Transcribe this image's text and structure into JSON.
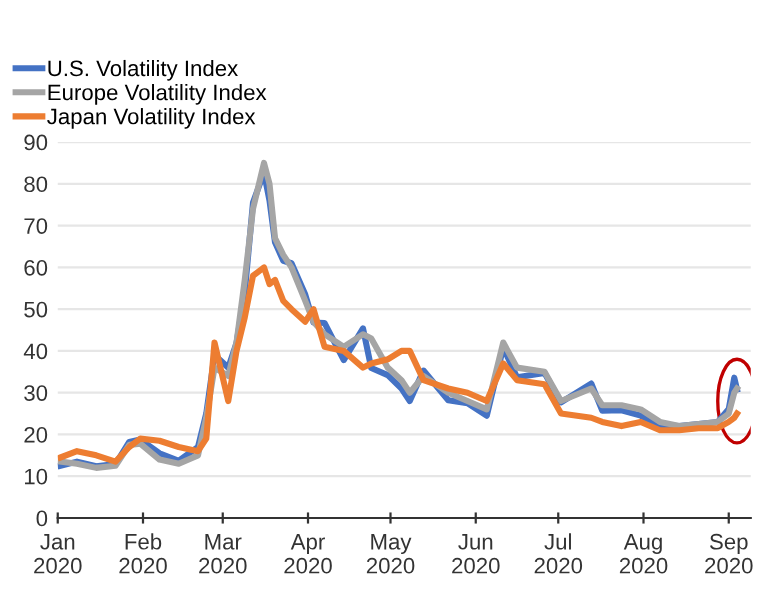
{
  "chart_data": {
    "type": "line",
    "x": [
      "2020-01-02",
      "2020-01-08",
      "2020-01-15",
      "2020-01-22",
      "2020-01-27",
      "2020-01-31",
      "2020-02-07",
      "2020-02-14",
      "2020-02-21",
      "2020-02-24",
      "2020-02-27",
      "2020-03-03",
      "2020-03-06",
      "2020-03-09",
      "2020-03-12",
      "2020-03-16",
      "2020-03-18",
      "2020-03-20",
      "2020-03-23",
      "2020-03-26",
      "2020-03-31",
      "2020-04-03",
      "2020-04-07",
      "2020-04-14",
      "2020-04-21",
      "2020-04-24",
      "2020-04-30",
      "2020-05-05",
      "2020-05-08",
      "2020-05-13",
      "2020-05-22",
      "2020-05-29",
      "2020-06-05",
      "2020-06-11",
      "2020-06-16",
      "2020-06-26",
      "2020-07-02",
      "2020-07-13",
      "2020-07-17",
      "2020-07-24",
      "2020-07-31",
      "2020-08-07",
      "2020-08-14",
      "2020-08-21",
      "2020-08-28",
      "2020-09-01",
      "2020-09-03",
      "2020-09-04"
    ],
    "series": [
      {
        "name": "U.S. Volatility Index",
        "color": "#4472c4",
        "values": [
          12.5,
          13.5,
          12.4,
          12.9,
          18.2,
          18.8,
          15.5,
          13.7,
          17,
          25,
          39,
          36,
          41.9,
          54,
          75.5,
          82.7,
          76,
          66,
          61.6,
          61,
          53.5,
          46.8,
          46.7,
          37.8,
          45.4,
          35.9,
          34.2,
          31,
          28,
          35.3,
          28.2,
          27.5,
          24.5,
          40.8,
          33.7,
          34.7,
          27.7,
          32.2,
          25.7,
          25.8,
          24.5,
          22.2,
          22,
          22.5,
          23,
          26.1,
          33.6,
          30.8
        ]
      },
      {
        "name": "Europe Volatility Index",
        "color": "#a5a5a5",
        "values": [
          13.5,
          13,
          12,
          12.5,
          17.5,
          17.8,
          14,
          13,
          15,
          24,
          36,
          34,
          42,
          57,
          74,
          85,
          80,
          67,
          63,
          60,
          52,
          47,
          44,
          41,
          44,
          43,
          36,
          33,
          30,
          34,
          30,
          28,
          26,
          42,
          36,
          35,
          28,
          31,
          27,
          27,
          26,
          23,
          22,
          22.5,
          23,
          25,
          30,
          31
        ]
      },
      {
        "name": "Japan Volatility Index",
        "color": "#ed7d31",
        "values": [
          14.5,
          16,
          15,
          13.5,
          17,
          19,
          18.5,
          17,
          16,
          19,
          42,
          28,
          40,
          48,
          58,
          60,
          56,
          57,
          52,
          50,
          47,
          50,
          41,
          40,
          36,
          37,
          38,
          40,
          40,
          33,
          31,
          30,
          28,
          37,
          33,
          32,
          25,
          24,
          23,
          22,
          23,
          21,
          21,
          21.5,
          21.5,
          23,
          24,
          25
        ]
      }
    ],
    "xlim": [
      "2020-01-01",
      "2020-09-09"
    ],
    "xticks": [
      {
        "value": "2020-01-01",
        "label": "Jan\n2020"
      },
      {
        "value": "2020-02-01",
        "label": "Feb\n2020"
      },
      {
        "value": "2020-03-01",
        "label": "Mar\n2020"
      },
      {
        "value": "2020-04-01",
        "label": "Apr\n2020"
      },
      {
        "value": "2020-05-01",
        "label": "May\n2020"
      },
      {
        "value": "2020-06-01",
        "label": "Jun\n2020"
      },
      {
        "value": "2020-07-01",
        "label": "Jul\n2020"
      },
      {
        "value": "2020-08-01",
        "label": "Aug\n2020"
      },
      {
        "value": "2020-09-01",
        "label": "Sep\n2020"
      }
    ],
    "ylim": [
      0,
      90
    ],
    "yticks": [
      0,
      10,
      20,
      30,
      40,
      50,
      60,
      70,
      80,
      90
    ],
    "grid": "y",
    "legend": "top left",
    "marker": "none",
    "line_style": "solid"
  }
}
